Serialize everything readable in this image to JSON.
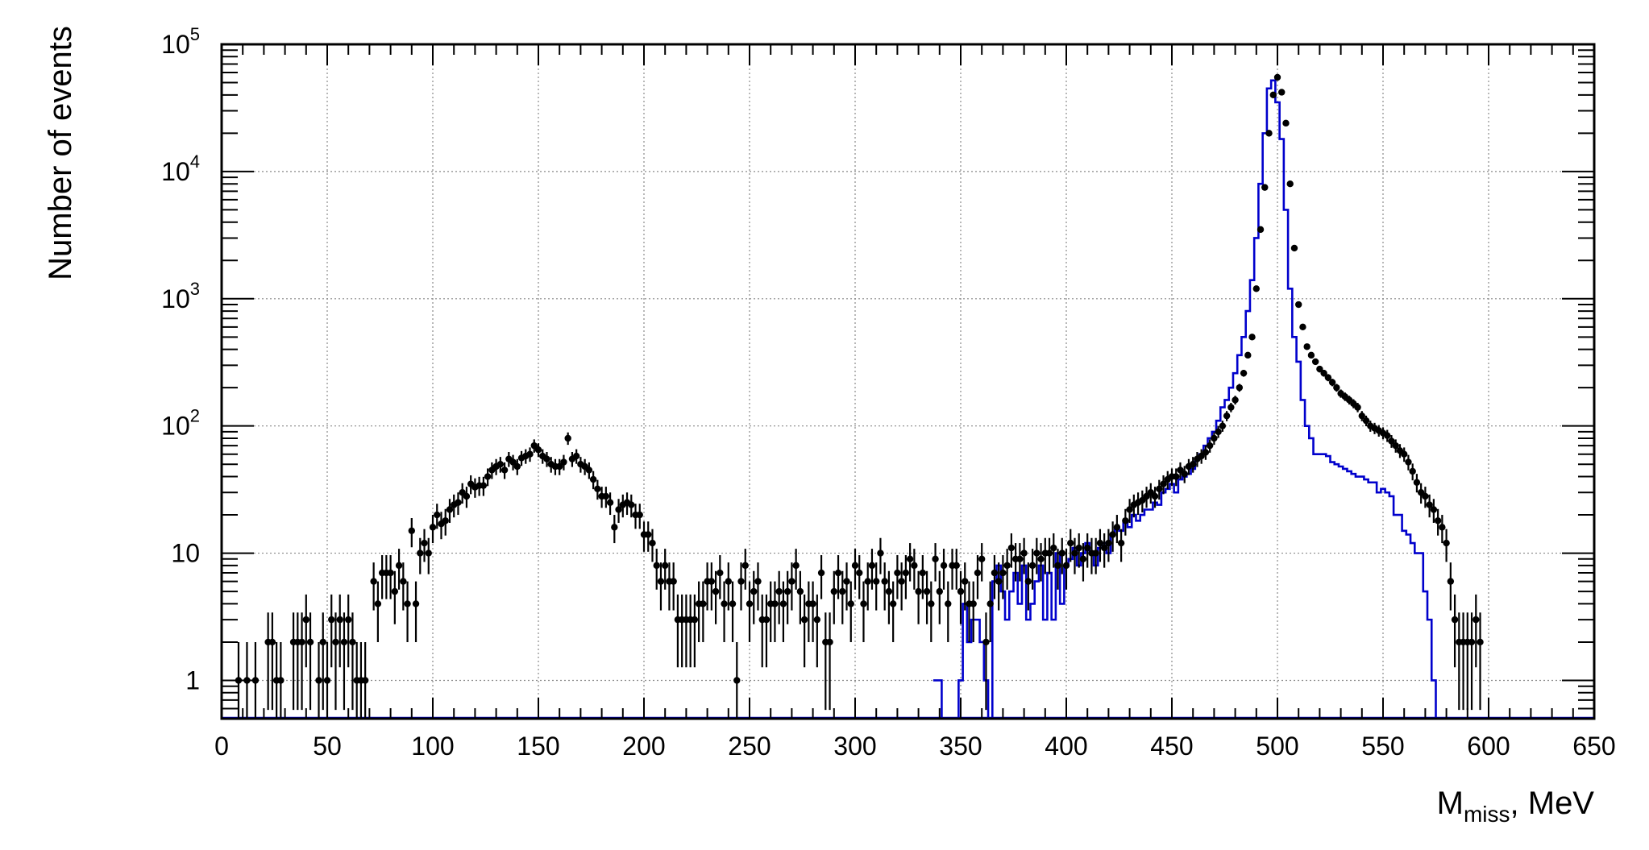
{
  "chart_data": {
    "type": "scatter",
    "xlabel_main": "M",
    "xlabel_sub": "miss",
    "xlabel_rest": ", MeV",
    "ylabel": "Number of events",
    "xlim": [
      0,
      650
    ],
    "ylim": [
      0.5,
      100000
    ],
    "y_scale": "log",
    "grid": true,
    "x_tick_labels": [
      "0",
      "50",
      "100",
      "150",
      "200",
      "250",
      "300",
      "350",
      "400",
      "450",
      "500",
      "550",
      "600",
      "650"
    ],
    "y_tick_labels": [
      {
        "value": 1,
        "base": "1",
        "exp": ""
      },
      {
        "value": 10,
        "base": "10",
        "exp": ""
      },
      {
        "value": 100,
        "base": "10",
        "exp": "2"
      },
      {
        "value": 1000,
        "base": "10",
        "exp": "3"
      },
      {
        "value": 10000,
        "base": "10",
        "exp": "4"
      },
      {
        "value": 100000,
        "base": "10",
        "exp": "5"
      }
    ],
    "colors": {
      "data": "#000000",
      "simulation": "#0000cc",
      "grid": "#888888"
    },
    "series": [
      {
        "kind": "data points with error bars",
        "x": [
          8,
          12,
          16,
          22,
          24,
          26,
          28,
          34,
          36,
          38,
          40,
          42,
          46,
          48,
          50,
          52,
          54,
          56,
          58,
          60,
          62,
          64,
          66,
          68,
          72,
          74,
          76,
          78,
          80,
          82,
          84,
          86,
          88,
          90,
          92,
          94,
          96,
          98,
          100,
          102,
          104,
          106,
          108,
          110,
          112,
          114,
          116,
          118,
          120,
          122,
          124,
          126,
          128,
          130,
          132,
          134,
          136,
          138,
          140,
          142,
          144,
          146,
          148,
          150,
          152,
          154,
          156,
          158,
          160,
          162,
          164,
          166,
          168,
          170,
          172,
          174,
          176,
          178,
          180,
          182,
          184,
          186,
          188,
          190,
          192,
          194,
          196,
          198,
          200,
          202,
          204,
          206,
          208,
          210,
          212,
          214,
          216,
          218,
          220,
          222,
          224,
          226,
          228,
          230,
          232,
          234,
          236,
          238,
          240,
          242,
          244,
          246,
          248,
          250,
          252,
          254,
          256,
          258,
          260,
          262,
          264,
          266,
          268,
          270,
          272,
          274,
          276,
          278,
          280,
          282,
          284,
          286,
          288,
          290,
          292,
          294,
          296,
          298,
          300,
          302,
          304,
          306,
          308,
          310,
          312,
          314,
          316,
          318,
          320,
          322,
          324,
          326,
          328,
          330,
          332,
          334,
          336,
          338,
          340,
          342,
          344,
          346,
          348,
          350,
          352,
          354,
          356,
          358,
          360,
          362,
          364,
          366,
          368,
          370,
          372,
          374,
          376,
          378,
          380,
          382,
          384,
          386,
          388,
          390,
          392,
          394,
          396,
          398,
          400,
          402,
          404,
          406,
          408,
          410,
          412,
          414,
          416,
          418,
          420,
          422,
          424,
          426,
          428,
          430,
          432,
          434,
          436,
          438,
          440,
          442,
          444,
          446,
          448,
          450,
          452,
          454,
          456,
          458,
          460,
          462,
          464,
          466,
          468,
          470,
          472,
          474,
          476,
          478,
          480,
          482,
          484,
          486,
          488,
          490,
          492,
          494,
          496,
          498,
          500,
          502,
          504,
          506,
          508,
          510,
          512,
          514,
          516,
          518,
          520,
          522,
          524,
          526,
          528,
          530,
          532,
          534,
          536,
          538,
          540,
          542,
          544,
          546,
          548,
          550,
          552,
          554,
          556,
          558,
          560,
          562,
          564,
          566,
          568,
          570,
          572,
          574,
          576,
          578,
          580,
          582,
          584,
          586,
          588,
          590,
          592,
          594,
          596
        ],
        "y": [
          1,
          1,
          1,
          2,
          2,
          1,
          1,
          2,
          2,
          2,
          3,
          2,
          1,
          2,
          1,
          3,
          2,
          3,
          2,
          3,
          2,
          1,
          1,
          1,
          6,
          4,
          7,
          7,
          7,
          5,
          8,
          6,
          4,
          15,
          4,
          10,
          12,
          10,
          16,
          20,
          17,
          18,
          22,
          24,
          25,
          30,
          28,
          35,
          33,
          34,
          34,
          40,
          45,
          48,
          50,
          45,
          55,
          52,
          48,
          56,
          58,
          60,
          70,
          65,
          58,
          55,
          50,
          48,
          48,
          52,
          80,
          55,
          58,
          50,
          48,
          45,
          38,
          32,
          28,
          28,
          25,
          16,
          22,
          24,
          25,
          24,
          20,
          20,
          14,
          14,
          12,
          8,
          6,
          8,
          6,
          6,
          3,
          3,
          3,
          3,
          3,
          4,
          4,
          6,
          6,
          5,
          7,
          4,
          6,
          4,
          1,
          6,
          8,
          4,
          5,
          6,
          3,
          3,
          4,
          4,
          5,
          4,
          5,
          6,
          8,
          5,
          3,
          4,
          4,
          3,
          7,
          2,
          2,
          5,
          7,
          5,
          6,
          4,
          8,
          7,
          4,
          6,
          8,
          6,
          10,
          6,
          5,
          4,
          7,
          6,
          7,
          9,
          8,
          5,
          7,
          5,
          4,
          9,
          5,
          8,
          4,
          8,
          8,
          5,
          6,
          4,
          4,
          7,
          9,
          2,
          4,
          7,
          6,
          7,
          8,
          11,
          9,
          9,
          10,
          6,
          8,
          10,
          9,
          10,
          10,
          11,
          8,
          10,
          8,
          12,
          10,
          11,
          9,
          11,
          10,
          10,
          12,
          11,
          12,
          14,
          16,
          12,
          18,
          22,
          24,
          25,
          26,
          28,
          30,
          28,
          32,
          35,
          38,
          40,
          40,
          45,
          42,
          48,
          50,
          55,
          58,
          62,
          70,
          80,
          90,
          100,
          120,
          140,
          160,
          200,
          260,
          360,
          500,
          1200,
          3500,
          7500,
          20000,
          40000,
          55000,
          42000,
          24000,
          8000,
          2500,
          900,
          600,
          420,
          360,
          320,
          280,
          260,
          240,
          220,
          200,
          180,
          170,
          160,
          150,
          140,
          120,
          110,
          100,
          96,
          92,
          88,
          84,
          76,
          70,
          64,
          60,
          52,
          44,
          36,
          30,
          28,
          24,
          22,
          18,
          16,
          12,
          6,
          3,
          2,
          2,
          2,
          2,
          3,
          2
        ]
      },
      {
        "kind": "simulation histogram (blue line)",
        "x": [
          338,
          340,
          342,
          344,
          346,
          348,
          350,
          352,
          354,
          356,
          358,
          360,
          362,
          364,
          366,
          368,
          370,
          372,
          374,
          376,
          378,
          380,
          382,
          384,
          386,
          388,
          390,
          392,
          394,
          396,
          398,
          400,
          402,
          404,
          406,
          408,
          410,
          412,
          414,
          416,
          418,
          420,
          422,
          424,
          426,
          428,
          430,
          432,
          434,
          436,
          438,
          440,
          442,
          444,
          446,
          448,
          450,
          452,
          454,
          456,
          458,
          460,
          462,
          464,
          466,
          468,
          470,
          472,
          474,
          476,
          478,
          480,
          482,
          484,
          486,
          488,
          490,
          492,
          494,
          496,
          498,
          500,
          502,
          504,
          506,
          508,
          510,
          512,
          514,
          516,
          518,
          520,
          522,
          524,
          526,
          528,
          530,
          532,
          534,
          536,
          538,
          540,
          542,
          544,
          546,
          548,
          550,
          552,
          554,
          556,
          558,
          560,
          562,
          564,
          566,
          568,
          570,
          572,
          574,
          576,
          578,
          580,
          582,
          584,
          586,
          588,
          590,
          592,
          594
        ],
        "y": [
          1,
          1,
          0.3,
          0.3,
          0.3,
          0.3,
          1,
          4,
          2,
          3,
          3,
          2,
          1,
          0.3,
          6,
          8,
          5,
          3,
          5,
          7,
          4,
          8,
          3,
          4,
          6,
          8,
          3,
          7,
          3,
          10,
          4,
          8,
          9,
          11,
          8,
          10,
          12,
          10,
          8,
          11,
          12,
          10,
          14,
          16,
          15,
          18,
          16,
          20,
          18,
          20,
          22,
          22,
          25,
          24,
          30,
          32,
          35,
          30,
          38,
          40,
          42,
          46,
          55,
          60,
          70,
          80,
          90,
          110,
          140,
          160,
          200,
          260,
          360,
          500,
          800,
          1400,
          3000,
          8000,
          20000,
          45000,
          52000,
          35000,
          18000,
          5000,
          1200,
          500,
          320,
          160,
          100,
          80,
          60,
          60,
          60,
          58,
          52,
          50,
          48,
          46,
          44,
          42,
          40,
          40,
          38,
          36,
          36,
          30,
          32,
          30,
          28,
          20,
          20,
          15,
          14,
          12,
          10,
          10,
          5,
          3,
          1,
          0.5,
          0.5,
          0.3,
          0.3,
          0.3,
          0.3,
          0.3,
          0.3,
          0.3,
          0.3
        ]
      }
    ]
  }
}
